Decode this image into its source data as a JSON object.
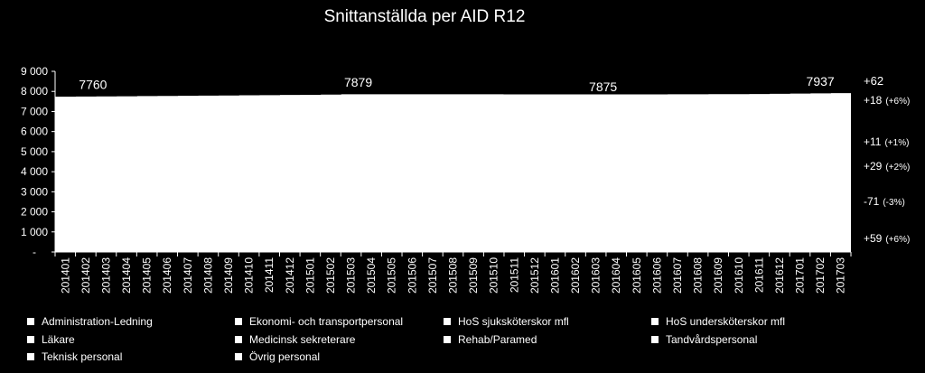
{
  "chart_data": {
    "type": "area",
    "title": "Snittanställda per AID R12",
    "x": [
      "201401",
      "201402",
      "201403",
      "201404",
      "201405",
      "201406",
      "201407",
      "201408",
      "201409",
      "201410",
      "201411",
      "201412",
      "201501",
      "201502",
      "201503",
      "201504",
      "201505",
      "201506",
      "201507",
      "201508",
      "201509",
      "201510",
      "201511",
      "201512",
      "201601",
      "201602",
      "201603",
      "201604",
      "201605",
      "201606",
      "201607",
      "201608",
      "201609",
      "201610",
      "201611",
      "201612",
      "201701",
      "201702",
      "201703"
    ],
    "total": [
      7760,
      7768,
      7775,
      7782,
      7790,
      7797,
      7805,
      7812,
      7820,
      7828,
      7836,
      7845,
      7855,
      7866,
      7879,
      7879,
      7880,
      7880,
      7879,
      7879,
      7878,
      7878,
      7877,
      7877,
      7876,
      7876,
      7875,
      7875,
      7875,
      7876,
      7878,
      7880,
      7884,
      7888,
      7893,
      7901,
      7912,
      7924,
      7937
    ],
    "ylim": [
      0,
      9000
    ],
    "yticks": [
      "-",
      "1 000",
      "2 000",
      "3 000",
      "4 000",
      "5 000",
      "6 000",
      "7 000",
      "8 000",
      "9 000"
    ],
    "data_labels": [
      {
        "x": "201402",
        "text": "7760"
      },
      {
        "x": "201503",
        "text": "7879"
      },
      {
        "x": "201603",
        "text": "7875"
      },
      {
        "x": "201702",
        "text": "7937"
      }
    ],
    "legend": [
      "Administration-Ledning",
      "Ekonomi- och transportpersonal",
      "HoS sjuksköterskor mfl",
      "HoS undersköterskor mfl",
      "Läkare",
      "Medicinsk sekreterare",
      "Rehab/Paramed",
      "Tandvårdspersonal",
      "Teknisk personal",
      "Övrig personal"
    ],
    "legend_position": "bottom",
    "grid": false
  },
  "annotations": [
    {
      "value": "+62",
      "pct": ""
    },
    {
      "value": "+18",
      "pct": "(+6%)"
    },
    {
      "value": "+11",
      "pct": "(+1%)"
    },
    {
      "value": "+29",
      "pct": "(+2%)"
    },
    {
      "value": "-71",
      "pct": "(-3%)"
    },
    {
      "value": "+59",
      "pct": "(+6%)"
    }
  ],
  "colors": {
    "background": "#000000",
    "fill": "#ffffff",
    "text": "#ffffff"
  }
}
